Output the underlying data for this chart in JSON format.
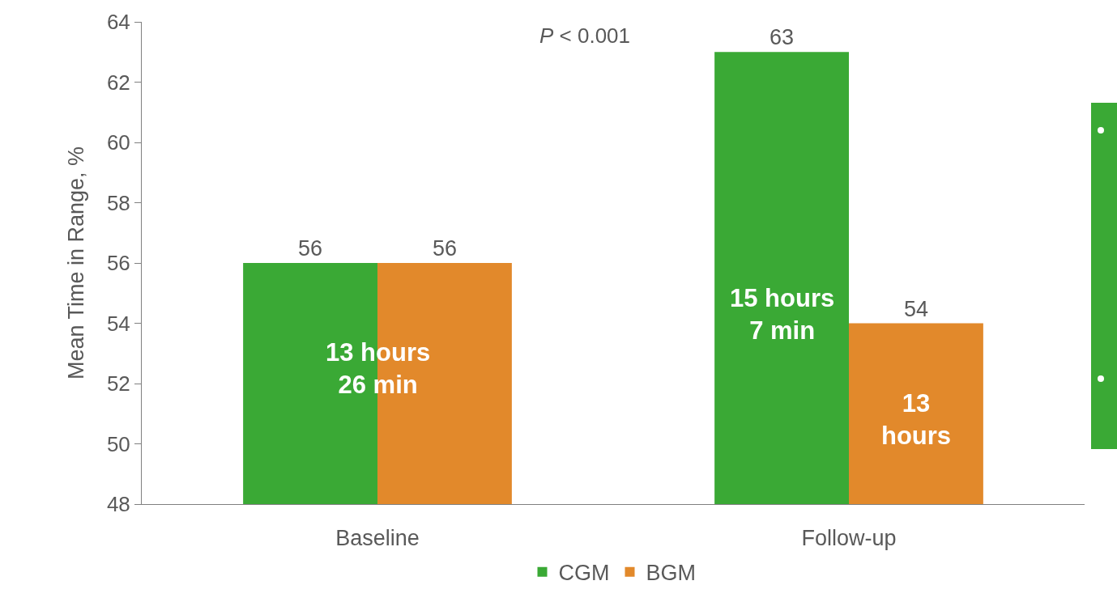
{
  "chart_data": {
    "type": "bar",
    "ylabel": "Mean Time in Range, %",
    "categories": [
      "Baseline",
      "Follow-up"
    ],
    "series": [
      {
        "name": "CGM",
        "color": "#3aa935",
        "values": [
          56,
          63
        ]
      },
      {
        "name": "BGM",
        "color": "#e2892b",
        "values": [
          56,
          54
        ]
      }
    ],
    "ylim": [
      48,
      64
    ],
    "yticks": [
      48,
      50,
      52,
      54,
      56,
      58,
      60,
      62,
      64
    ],
    "grid": false,
    "legend": "bottom",
    "data_labels": true,
    "annotations": [
      "P < 0.001",
      {
        "text": "13 hours\n26 min",
        "x": "Baseline",
        "y": 52.5
      },
      {
        "text": "15 hours\n7 min",
        "x": "Follow-up",
        "y": 54.3
      },
      {
        "text": "13\nhours",
        "x": "Follow-up",
        "y": 50.8
      }
    ]
  }
}
